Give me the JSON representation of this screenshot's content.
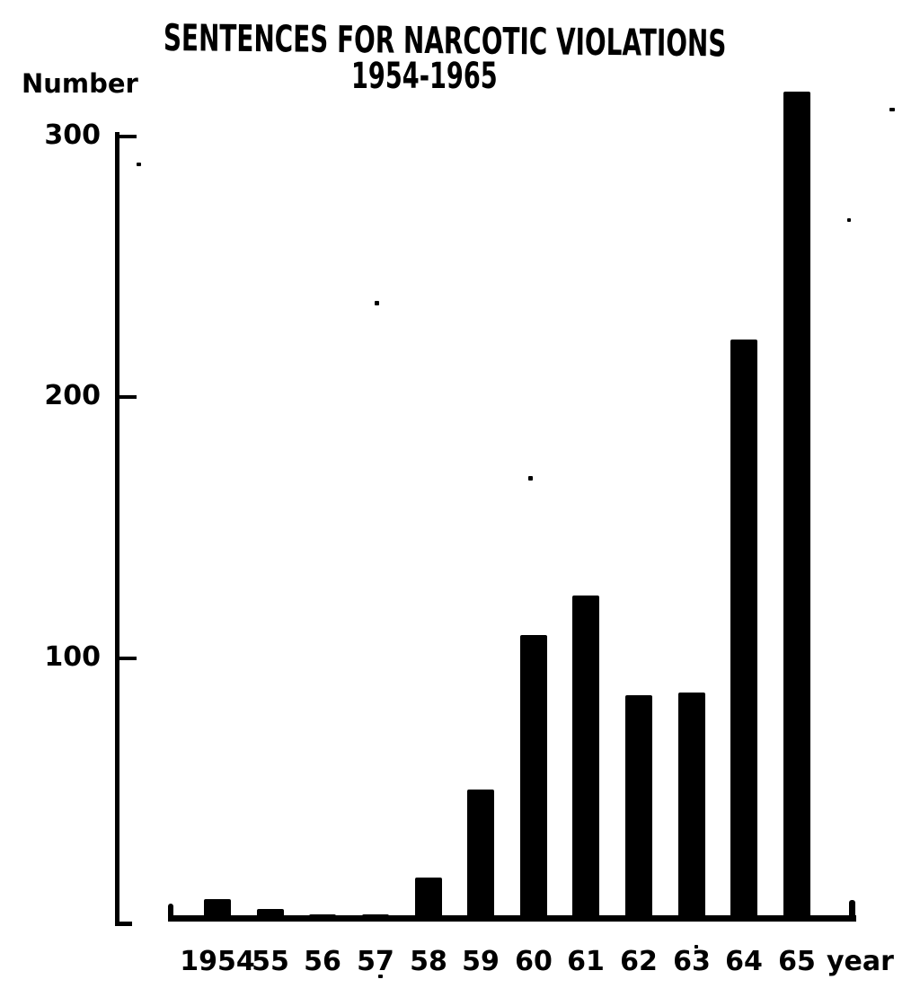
{
  "figure": {
    "background": "#ffffff",
    "ink": "#000000"
  },
  "chart_data": {
    "type": "bar",
    "title": "SENTENCES FOR NARCOTIC VIOLATIONS",
    "subtitle": "1954-1965",
    "ylabel": "Number",
    "xlabel": "year",
    "categories": [
      "1954",
      "55",
      "56",
      "57",
      "58",
      "59",
      "60",
      "61",
      "62",
      "63",
      "64",
      "65"
    ],
    "values": [
      8,
      4,
      2,
      2,
      16,
      50,
      109,
      124,
      86,
      87,
      222,
      317
    ],
    "yticks": [
      100,
      200,
      300
    ],
    "ylim": [
      0,
      320
    ],
    "grid": false,
    "legend": false,
    "bar_color": "#000000",
    "axis_color": "#000000"
  }
}
